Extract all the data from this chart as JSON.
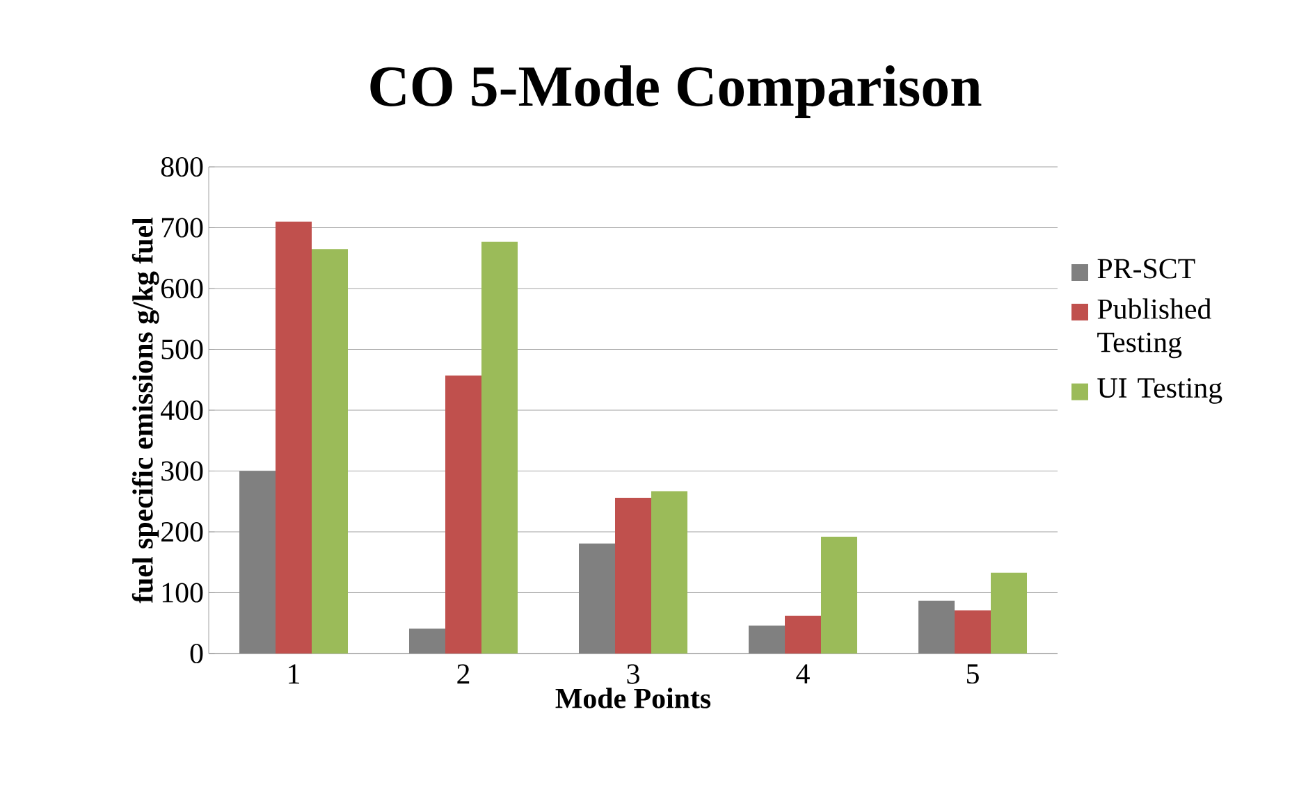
{
  "chart_data": {
    "type": "bar",
    "title": "CO 5-Mode Comparison",
    "xlabel": "Mode Points",
    "ylabel": "fuel specific emissions g/kg fuel",
    "categories": [
      "1",
      "2",
      "3",
      "4",
      "5"
    ],
    "series": [
      {
        "name": "PR-SCT",
        "color": "#808080",
        "values": [
          300,
          41,
          181,
          46,
          87
        ]
      },
      {
        "name": "Published Testing",
        "color": "#c0504d",
        "values": [
          710,
          457,
          256,
          62,
          71
        ]
      },
      {
        "name": "UI Testing",
        "color": "#9bbb59",
        "values": [
          665,
          677,
          267,
          192,
          133
        ]
      }
    ],
    "ylim": [
      0,
      800
    ],
    "yticks": [
      0,
      100,
      200,
      300,
      400,
      500,
      600,
      700,
      800
    ],
    "grid": "y",
    "legend": "right"
  }
}
